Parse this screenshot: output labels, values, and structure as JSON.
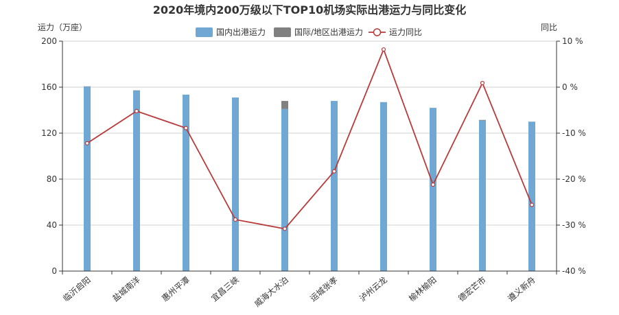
{
  "chart_data": {
    "type": "bar+line",
    "title": "2020年境内200万级以下TOP10机场实际出港运力与同比变化",
    "y_left_label": "运力（万座）",
    "y_right_label": "同比",
    "y_left_lim": [
      0,
      200
    ],
    "y_left_ticks": [
      0,
      40,
      80,
      120,
      160,
      200
    ],
    "y_right_lim": [
      -40,
      10
    ],
    "y_right_ticks": [
      "10 %",
      "0 %",
      "-10 %",
      "-20 %",
      "-30 %",
      "-40 %"
    ],
    "y_right_tick_values": [
      10,
      0,
      -10,
      -20,
      -30,
      -40
    ],
    "grid": true,
    "legend_position": "top-center",
    "categories": [
      "临沂启阳",
      "盐城南洋",
      "惠州平潭",
      "宜昌三峡",
      "威海大水泊",
      "运城张孝",
      "泸州云龙",
      "榆林榆阳",
      "德宏芒市",
      "遵义新舟"
    ],
    "series": [
      {
        "name": "国内出港运力",
        "kind": "bar",
        "stack": "capacity",
        "color": "#6fa8d3",
        "values": [
          160.5,
          157,
          153.5,
          151,
          141,
          148,
          147,
          142,
          131,
          130
        ]
      },
      {
        "name": "国际/地区出港运力",
        "kind": "bar",
        "stack": "capacity",
        "color": "#808080",
        "values": [
          0.2,
          0.2,
          0,
          0,
          7,
          0,
          0,
          0,
          0.5,
          0
        ]
      },
      {
        "name": "运力同比",
        "kind": "line",
        "axis": "right",
        "color": "#b83a3a",
        "values": [
          -12.2,
          -5.2,
          -8.9,
          -28.8,
          -30.8,
          -18.3,
          8.2,
          -21.2,
          0.9,
          -25.6
        ]
      }
    ]
  }
}
